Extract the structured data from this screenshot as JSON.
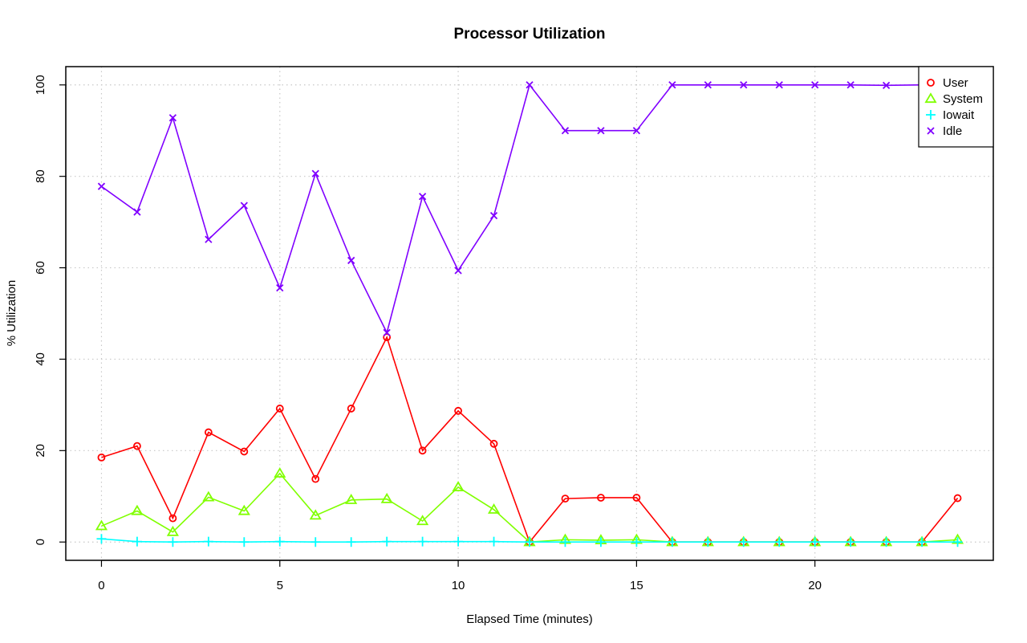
{
  "chart_data": {
    "type": "line",
    "title": "Processor Utilization",
    "xlabel": "Elapsed Time (minutes)",
    "ylabel": "% Utilization",
    "xlim": [
      -1,
      25
    ],
    "ylim": [
      -4,
      104
    ],
    "xticks": [
      0,
      5,
      10,
      15,
      20
    ],
    "yticks": [
      0,
      20,
      40,
      60,
      80,
      100
    ],
    "grid": true,
    "legend_position": "top-right",
    "x": [
      0,
      1,
      2,
      3,
      4,
      5,
      6,
      7,
      8,
      9,
      10,
      11,
      12,
      13,
      14,
      15,
      16,
      17,
      18,
      19,
      20,
      21,
      22,
      23,
      24
    ],
    "series": [
      {
        "name": "User",
        "color": "#ff0000",
        "marker": "circle",
        "values": [
          18.5,
          21,
          5.2,
          24,
          19.8,
          29.2,
          13.8,
          29.2,
          44.8,
          20,
          28.7,
          21.5,
          0,
          9.5,
          9.7,
          9.7,
          0,
          0,
          0,
          0,
          0,
          0,
          0,
          0,
          9.6
        ]
      },
      {
        "name": "System",
        "color": "#80ff00",
        "marker": "triangle",
        "values": [
          3.5,
          6.8,
          2.2,
          9.8,
          6.8,
          15,
          5.8,
          9.2,
          9.4,
          4.6,
          12,
          7.1,
          0,
          0.5,
          0.4,
          0.5,
          0,
          0,
          0,
          0,
          0,
          0,
          0,
          0,
          0.5
        ]
      },
      {
        "name": "Iowait",
        "color": "#00ffff",
        "marker": "plus",
        "values": [
          0.7,
          0.1,
          0,
          0.1,
          0,
          0.1,
          0,
          0,
          0.1,
          0.1,
          0.1,
          0.1,
          0,
          0,
          0,
          0,
          0,
          0,
          0,
          0,
          0,
          0,
          0,
          0,
          0
        ]
      },
      {
        "name": "Idle",
        "color": "#8000ff",
        "marker": "cross",
        "values": [
          77.8,
          72.2,
          92.8,
          66.2,
          73.6,
          55.6,
          80.6,
          61.6,
          45.8,
          75.6,
          59.4,
          71.4,
          100,
          90,
          90,
          90,
          100,
          100,
          100,
          100,
          100,
          100,
          99.9,
          100,
          90
        ]
      }
    ]
  }
}
